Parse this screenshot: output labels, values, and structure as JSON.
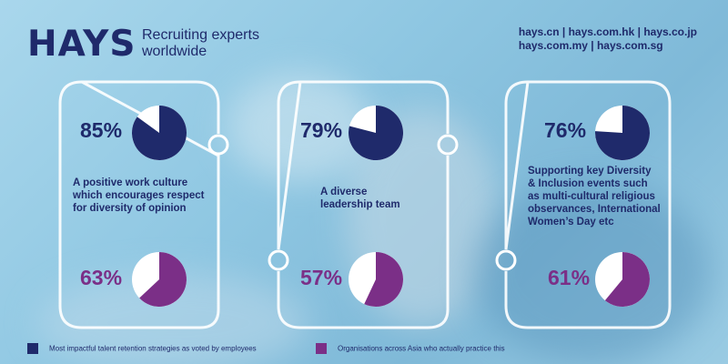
{
  "brand": {
    "logo": "HAYS",
    "tagline": "Recruiting experts worldwide",
    "sites_line1": "hays.cn | hays.com.hk | hays.co.jp",
    "sites_line2": "hays.com.my | hays.com.sg"
  },
  "colors": {
    "navy": "#1f2a6b",
    "purple": "#7b2f87",
    "empty": "#ffffff"
  },
  "chart_data": {
    "type": "pie",
    "series": [
      {
        "name": "Most impactful talent retention strategies as voted by employees",
        "color": "#1f2a6b"
      },
      {
        "name": "Organisations across Asia who actually practice this",
        "color": "#7b2f87"
      }
    ],
    "categories": [
      "A positive work culture which encourages respect for diversity of opinion",
      "A diverse leadership team",
      "Supporting key Diversity & Inclusion events such as multi-cultural religious observances, International Women’s Day etc"
    ],
    "items": [
      {
        "voted_pct": 85,
        "voted_label": "85%",
        "practice_pct": 63,
        "practice_label": "63%"
      },
      {
        "voted_pct": 79,
        "voted_label": "79%",
        "practice_pct": 57,
        "practice_label": "57%"
      },
      {
        "voted_pct": 76,
        "voted_label": "76%",
        "practice_pct": 61,
        "practice_label": "61%"
      }
    ]
  },
  "captions": {
    "c1": [
      "A positive work culture",
      "which encourages respect",
      "for diversity of opinion"
    ],
    "c2": [
      "A diverse",
      "leadership team"
    ],
    "c3": [
      "Supporting key Diversity",
      "& Inclusion events such",
      "as multi-cultural religious",
      "observances, International",
      "Women’s Day etc"
    ]
  },
  "legend": {
    "voted": "Most impactful talent retention strategies as voted by employees",
    "practice": "Organisations across Asia who actually practice this"
  }
}
